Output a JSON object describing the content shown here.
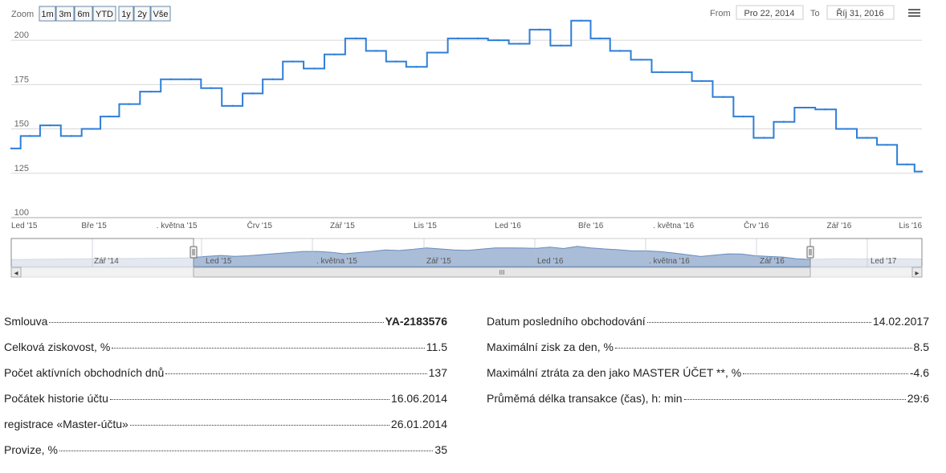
{
  "toolbar": {
    "zoom_label": "Zoom",
    "zoom_buttons": [
      "1m",
      "3m",
      "6m",
      "YTD",
      "1y",
      "2y",
      "Vše"
    ],
    "from_label": "From",
    "from_value": "Pro 22, 2014",
    "to_label": "To",
    "to_value": "Říj 31, 2016",
    "menu_icon": "hamburger-menu-icon"
  },
  "colors": {
    "line": "#2f7ed8",
    "navigator_fill": "#a9bdd8",
    "navigator_bg": "#e4e9f0",
    "grid": "#d8d8d8"
  },
  "chart_data": {
    "type": "line",
    "ylim": [
      100,
      210
    ],
    "y_ticks": [
      100,
      125,
      150,
      175,
      200
    ],
    "x_tick_labels": [
      "Led '15",
      "Bře '15",
      ". května '15",
      "Črv '15",
      "Zář '15",
      "Lis '15",
      "Led '16",
      "Bře '16",
      ". května '16",
      "Črv '16",
      "Zář '16",
      "Lis '16"
    ],
    "series": [
      {
        "x": [
          "2014-12-22",
          "2015-01-05",
          "2015-01-20",
          "2015-02-05",
          "2015-02-20",
          "2015-03-05",
          "2015-03-20",
          "2015-04-05",
          "2015-04-20",
          "2015-05-05",
          "2015-05-20",
          "2015-06-05",
          "2015-06-20",
          "2015-07-05",
          "2015-07-20",
          "2015-08-05",
          "2015-08-20",
          "2015-09-05",
          "2015-09-20",
          "2015-10-05",
          "2015-10-20",
          "2015-11-05",
          "2015-11-20",
          "2015-12-05",
          "2015-12-20",
          "2016-01-05",
          "2016-01-20",
          "2016-02-05",
          "2016-02-20",
          "2016-03-05",
          "2016-03-20",
          "2016-04-05",
          "2016-04-20",
          "2016-05-05",
          "2016-05-20",
          "2016-06-05",
          "2016-06-20",
          "2016-07-05",
          "2016-07-20",
          "2016-08-05",
          "2016-08-20",
          "2016-09-05",
          "2016-09-20",
          "2016-10-05",
          "2016-10-20",
          "2016-10-31"
        ],
        "y": [
          139,
          146,
          152,
          146,
          150,
          157,
          164,
          171,
          178,
          178,
          173,
          163,
          170,
          178,
          188,
          184,
          192,
          201,
          194,
          188,
          185,
          193,
          201,
          201,
          200,
          198,
          206,
          197,
          211,
          201,
          194,
          189,
          182,
          182,
          177,
          168,
          157,
          145,
          154,
          162,
          161,
          150,
          145,
          141,
          130,
          126
        ]
      }
    ]
  },
  "navigator": {
    "labels": [
      "Zář '14",
      "Led '15",
      ". května '15",
      "Zář '15",
      "Led '16",
      ". května '16",
      "Zář '16",
      "Led '17"
    ],
    "scroll_grip": "III",
    "left_arrow": "◂",
    "right_arrow": "▸"
  },
  "stats_left": [
    {
      "label": "Smlouva",
      "value": "YA-2183576",
      "bold": true
    },
    {
      "label": "Celková ziskovost, %",
      "value": "11.5"
    },
    {
      "label": "Počet aktívních obchodních dnů",
      "value": "137"
    },
    {
      "label": "Počátek historie účtu",
      "value": "16.06.2014"
    },
    {
      "label": "registrace «Master-účtu»",
      "value": "26.01.2014"
    },
    {
      "label": "Provize, %",
      "value": "35"
    }
  ],
  "stats_right": [
    {
      "label": "Datum posledního obchodování",
      "value": "14.02.2017"
    },
    {
      "label": "Maximální zisk za den, %",
      "value": "8.5"
    },
    {
      "label": "Maximální ztráta za den jako MASTER ÚČET **, %",
      "value": "-4.6"
    },
    {
      "label": "Průměmá délka transakce (čas), h: min",
      "value": "29:6"
    }
  ]
}
